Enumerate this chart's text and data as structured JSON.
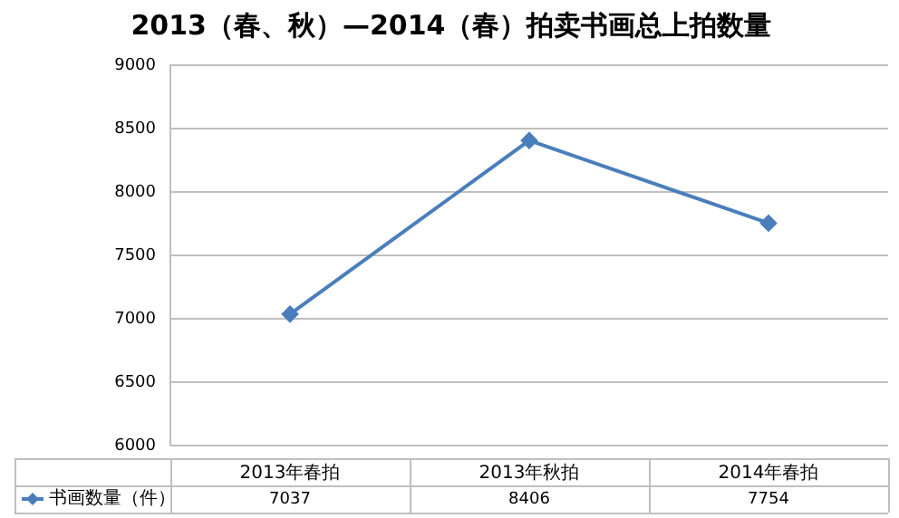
{
  "chart_data": {
    "type": "line",
    "title": "2013（春、秋）—2014（春）拍卖书画总上拍数量",
    "categories": [
      "2013年春拍",
      "2013年秋拍",
      "2014年春拍"
    ],
    "series": [
      {
        "name": "书画数量（件）",
        "color": "#4a7ebb",
        "values": [
          7037,
          8406,
          7754
        ]
      }
    ],
    "ylim": [
      6000,
      9000
    ],
    "yticks": [
      6000,
      6500,
      7000,
      7500,
      8000,
      8500,
      9000
    ],
    "grid": "y",
    "legend": "bottom left",
    "marker": "diamond",
    "line_style": "solid",
    "data_labels": true
  }
}
